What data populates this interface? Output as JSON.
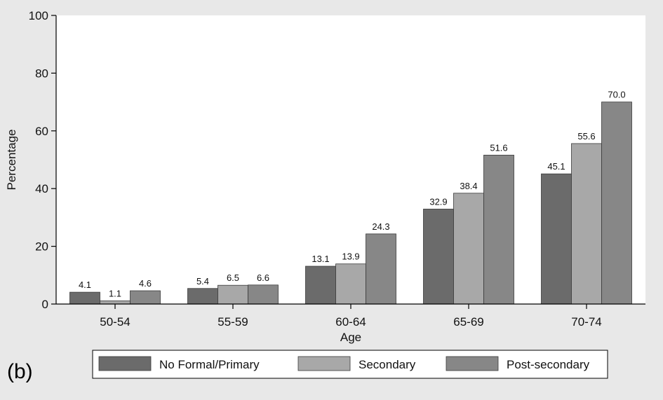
{
  "panel_label": "(b)",
  "chart_data": {
    "type": "bar",
    "title": "",
    "xlabel": "Age",
    "ylabel": "Percentage",
    "ylim": [
      0,
      100
    ],
    "yticks": [
      0,
      20,
      40,
      60,
      80,
      100
    ],
    "grid": false,
    "legend_position": "bottom",
    "categories": [
      "50-54",
      "55-59",
      "60-64",
      "65-69",
      "70-74"
    ],
    "series": [
      {
        "name": "No Formal/Primary",
        "color": "#6b6b6b",
        "values": [
          4.1,
          5.4,
          13.1,
          32.9,
          45.1
        ],
        "labels": [
          "4.1",
          "5.4",
          "13.1",
          "32.9",
          "45.1"
        ]
      },
      {
        "name": "Secondary",
        "color": "#a8a8a8",
        "values": [
          1.1,
          6.5,
          13.9,
          38.4,
          55.6
        ],
        "labels": [
          "1.1",
          "6.5",
          "13.9",
          "38.4",
          "55.6"
        ]
      },
      {
        "name": "Post-secondary",
        "color": "#878787",
        "values": [
          4.6,
          6.6,
          24.3,
          51.6,
          70.0
        ],
        "labels": [
          "4.6",
          "6.6",
          "24.3",
          "51.6",
          "70.0"
        ]
      }
    ]
  }
}
